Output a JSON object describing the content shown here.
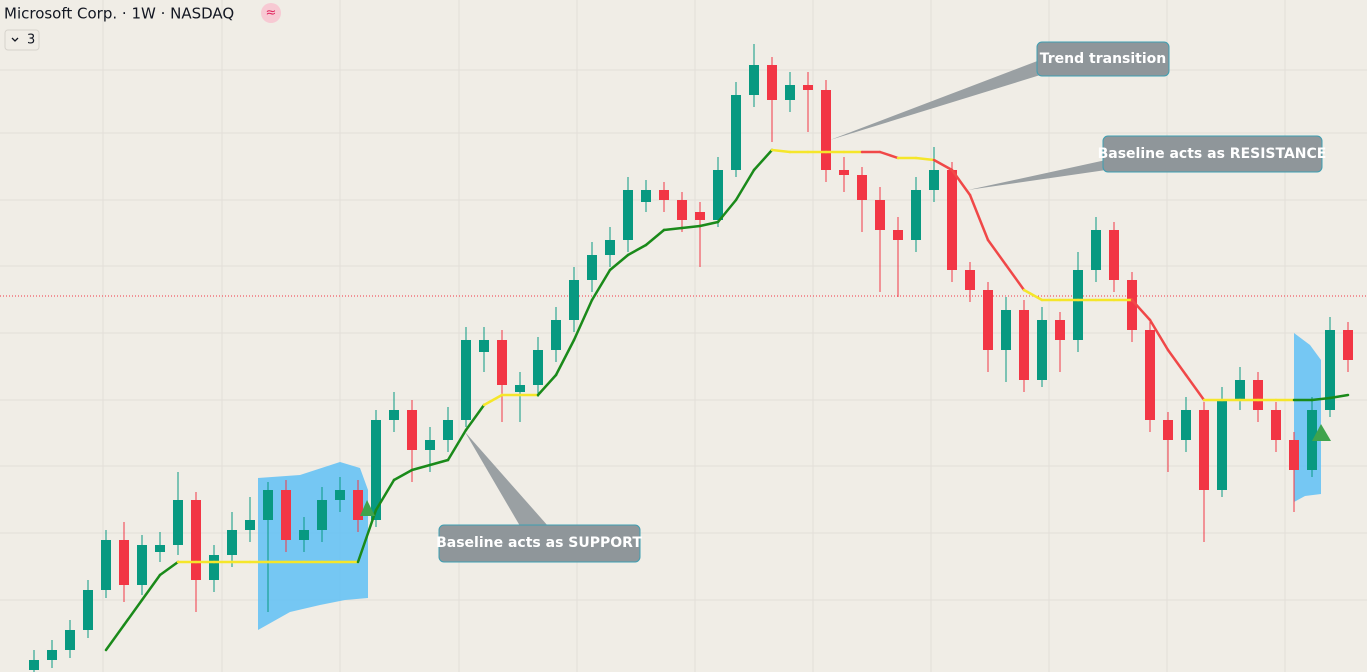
{
  "chart_data": {
    "type": "candlestick",
    "title": "Microsoft Corp. · 1W · NASDAQ",
    "indicator_count": "3",
    "ylim": [
      0,
      672
    ],
    "up_color": "#089981",
    "down_color": "#f23645",
    "candles": [
      [
        2,
        22,
        0,
        12
      ],
      [
        12,
        32,
        4,
        22
      ],
      [
        22,
        52,
        14,
        42
      ],
      [
        42,
        92,
        34,
        82
      ],
      [
        82,
        142,
        74,
        132
      ],
      [
        132,
        150,
        70,
        87
      ],
      [
        87,
        137,
        77,
        127
      ],
      [
        120,
        140,
        110,
        127
      ],
      [
        127,
        200,
        117,
        172
      ],
      [
        172,
        180,
        60,
        92
      ],
      [
        92,
        127,
        80,
        117
      ],
      [
        117,
        160,
        105,
        142
      ],
      [
        142,
        175,
        130,
        152
      ],
      [
        152,
        190,
        60,
        182
      ],
      [
        182,
        192,
        120,
        132
      ],
      [
        132,
        155,
        120,
        142
      ],
      [
        142,
        185,
        130,
        172
      ],
      [
        172,
        195,
        160,
        182
      ],
      [
        182,
        192,
        140,
        152
      ],
      [
        152,
        262,
        145,
        252
      ],
      [
        252,
        280,
        240,
        262
      ],
      [
        262,
        272,
        190,
        222
      ],
      [
        222,
        245,
        200,
        232
      ],
      [
        232,
        265,
        220,
        252
      ],
      [
        252,
        345,
        245,
        332
      ],
      [
        320,
        345,
        300,
        332
      ],
      [
        332,
        342,
        250,
        287
      ],
      [
        280,
        300,
        250,
        287
      ],
      [
        287,
        335,
        275,
        322
      ],
      [
        322,
        365,
        310,
        352
      ],
      [
        352,
        405,
        340,
        392
      ],
      [
        392,
        430,
        380,
        417
      ],
      [
        417,
        445,
        405,
        432
      ],
      [
        432,
        495,
        420,
        482
      ],
      [
        470,
        492,
        460,
        482
      ],
      [
        482,
        490,
        460,
        472
      ],
      [
        472,
        480,
        440,
        452
      ],
      [
        460,
        470,
        405,
        452
      ],
      [
        452,
        515,
        445,
        502
      ],
      [
        502,
        590,
        495,
        577
      ],
      [
        577,
        628,
        565,
        607
      ],
      [
        607,
        615,
        530,
        572
      ],
      [
        572,
        600,
        560,
        587
      ],
      [
        587,
        600,
        540,
        582
      ],
      [
        582,
        592,
        490,
        502
      ],
      [
        502,
        515,
        480,
        497
      ],
      [
        497,
        505,
        440,
        472
      ],
      [
        472,
        485,
        380,
        442
      ],
      [
        442,
        455,
        375,
        432
      ],
      [
        432,
        495,
        420,
        482
      ],
      [
        482,
        525,
        470,
        502
      ],
      [
        502,
        510,
        390,
        402
      ],
      [
        402,
        410,
        370,
        382
      ],
      [
        382,
        390,
        300,
        322
      ],
      [
        322,
        375,
        290,
        362
      ],
      [
        362,
        372,
        280,
        292
      ],
      [
        292,
        365,
        285,
        352
      ],
      [
        352,
        360,
        300,
        332
      ],
      [
        332,
        420,
        320,
        402
      ],
      [
        402,
        455,
        390,
        442
      ],
      [
        442,
        450,
        380,
        392
      ],
      [
        392,
        400,
        330,
        342
      ],
      [
        342,
        350,
        240,
        252
      ],
      [
        252,
        260,
        200,
        232
      ],
      [
        232,
        275,
        220,
        262
      ],
      [
        262,
        270,
        130,
        182
      ],
      [
        182,
        285,
        175,
        272
      ],
      [
        272,
        305,
        262,
        292
      ],
      [
        292,
        300,
        250,
        262
      ],
      [
        262,
        270,
        220,
        232
      ],
      [
        232,
        240,
        160,
        202
      ],
      [
        202,
        275,
        195,
        262
      ],
      [
        262,
        355,
        255,
        342
      ],
      [
        342,
        350,
        300,
        312
      ]
    ],
    "baseline": {
      "values": [
        null,
        null,
        null,
        null,
        22,
        47,
        72,
        97,
        110,
        110,
        110,
        110,
        110,
        110,
        110,
        110,
        110,
        110,
        110,
        162,
        192,
        202,
        207,
        212,
        242,
        267,
        277,
        277,
        277,
        297,
        332,
        372,
        402,
        417,
        427,
        442,
        444,
        446,
        450,
        472,
        502,
        522,
        520,
        520,
        520,
        520,
        520,
        520,
        514,
        514,
        512,
        502,
        477,
        432,
        407,
        382,
        372,
        372,
        372,
        372,
        372,
        372,
        352,
        322,
        297,
        272,
        272,
        272,
        272,
        272,
        272,
        272,
        274,
        277
      ],
      "colors": [
        "#1a8a1a",
        "#1a8a1a",
        "#1a8a1a",
        "#1a8a1a",
        "#1a8a1a",
        "#1a8a1a",
        "#1a8a1a",
        "#1a8a1a",
        "#1a8a1a",
        "#f5e62a",
        "#f5e62a",
        "#f5e62a",
        "#f5e62a",
        "#f5e62a",
        "#f5e62a",
        "#f5e62a",
        "#f5e62a",
        "#f5e62a",
        "#f5e62a",
        "#1a8a1a",
        "#1a8a1a",
        "#1a8a1a",
        "#1a8a1a",
        "#1a8a1a",
        "#1a8a1a",
        "#1a8a1a",
        "#f5e62a",
        "#f5e62a",
        "#f5e62a",
        "#1a8a1a",
        "#1a8a1a",
        "#1a8a1a",
        "#1a8a1a",
        "#1a8a1a",
        "#1a8a1a",
        "#1a8a1a",
        "#1a8a1a",
        "#1a8a1a",
        "#1a8a1a",
        "#1a8a1a",
        "#1a8a1a",
        "#1a8a1a",
        "#f5e62a",
        "#f5e62a",
        "#f5e62a",
        "#f5e62a",
        "#f5e62a",
        "#f04848",
        "#f04848",
        "#f5e62a",
        "#f5e62a",
        "#f04848",
        "#f04848",
        "#f04848",
        "#f04848",
        "#f04848",
        "#f5e62a",
        "#f5e62a",
        "#f5e62a",
        "#f5e62a",
        "#f5e62a",
        "#f5e62a",
        "#f04848",
        "#f04848",
        "#f04848",
        "#f04848",
        "#f5e62a",
        "#f5e62a",
        "#f5e62a",
        "#f5e62a",
        "#f5e62a",
        "#1a8a1a",
        "#1a8a1a",
        "#1a8a1a"
      ]
    },
    "annotations": [
      "Trend transition",
      "Baseline acts as RESISTANCE",
      "Baseline acts as SUPPORT"
    ]
  }
}
